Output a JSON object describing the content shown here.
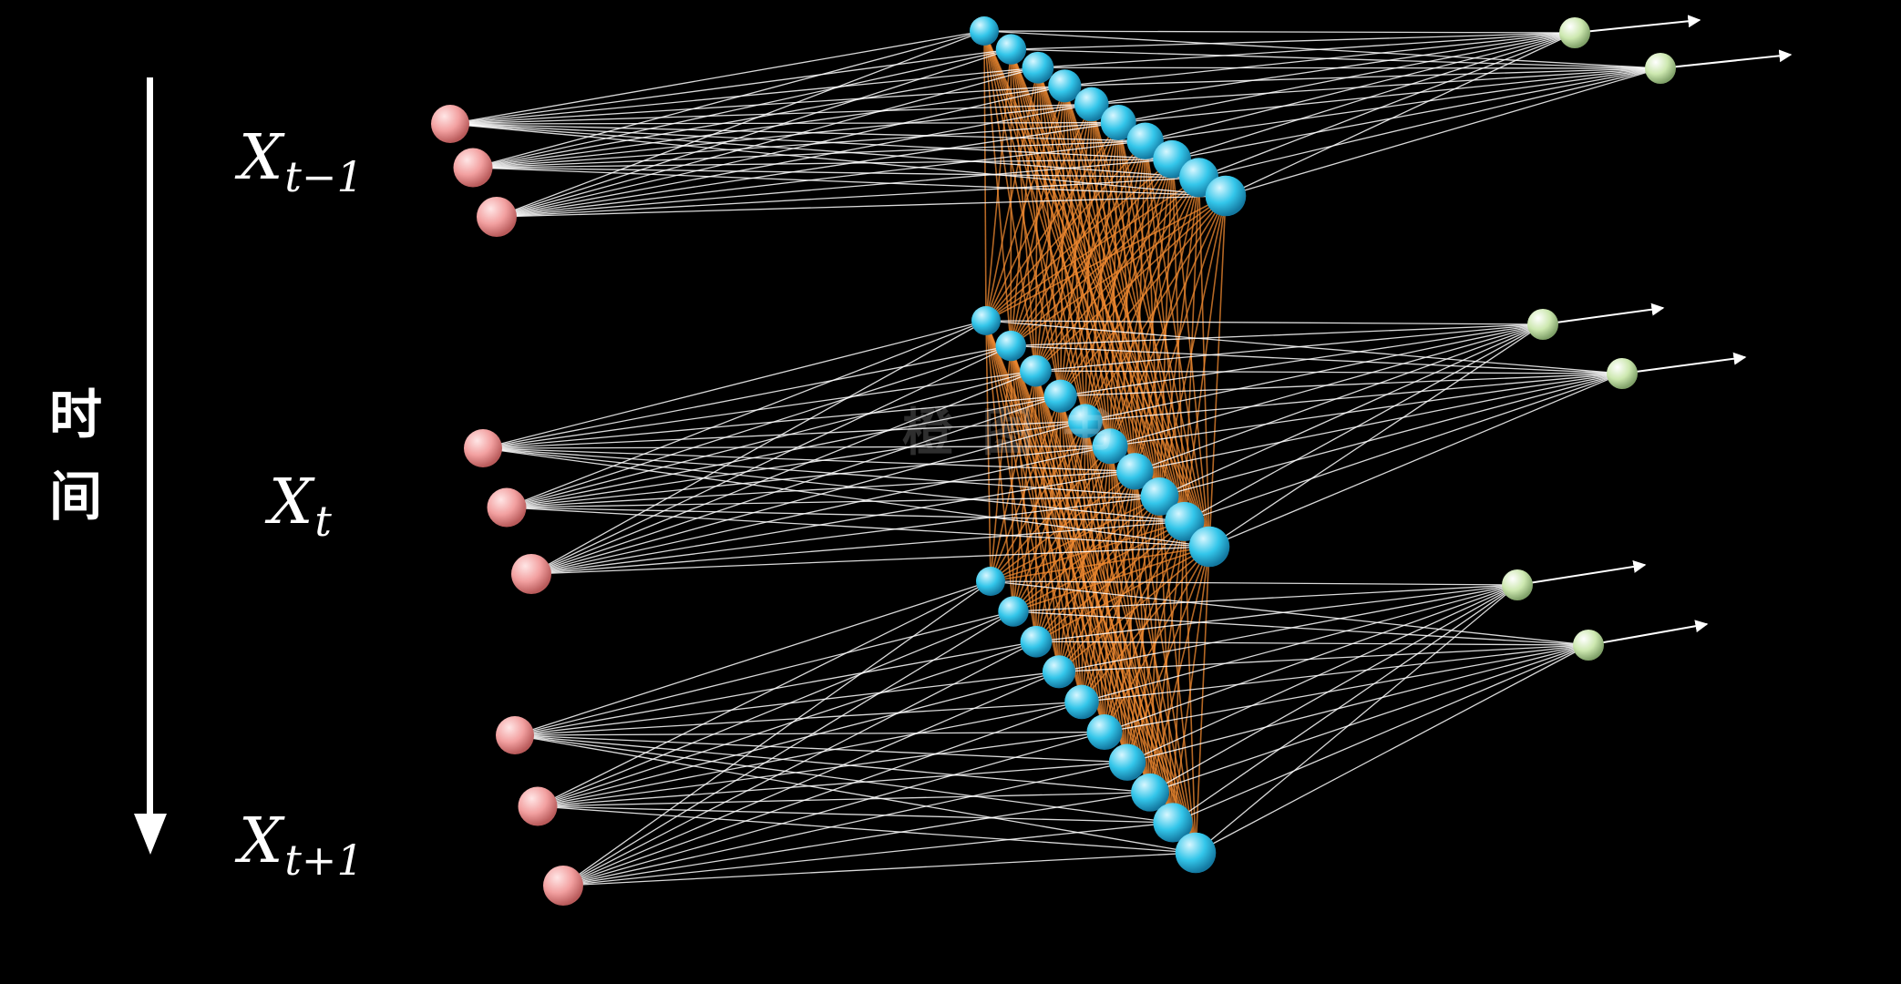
{
  "time_axis": {
    "label_chars": [
      "时",
      "间"
    ]
  },
  "steps": [
    {
      "id": "t-1",
      "var": "X",
      "sub": "t−1"
    },
    {
      "id": "t",
      "var": "X",
      "sub": "t"
    },
    {
      "id": "t+1",
      "var": "X",
      "sub": "t+1"
    }
  ],
  "network": {
    "input_nodes_per_step": 3,
    "hidden_nodes_per_step": 10,
    "output_nodes_per_step": 2,
    "colors": {
      "background": "#000000",
      "input_node": "#f2a0a0",
      "hidden_node": "#33c6ea",
      "output_node": "#cde8b0",
      "feedforward_edge": "#ffffff",
      "recurrent_edge": "#f08a30"
    }
  },
  "watermark": "橙 图 书"
}
